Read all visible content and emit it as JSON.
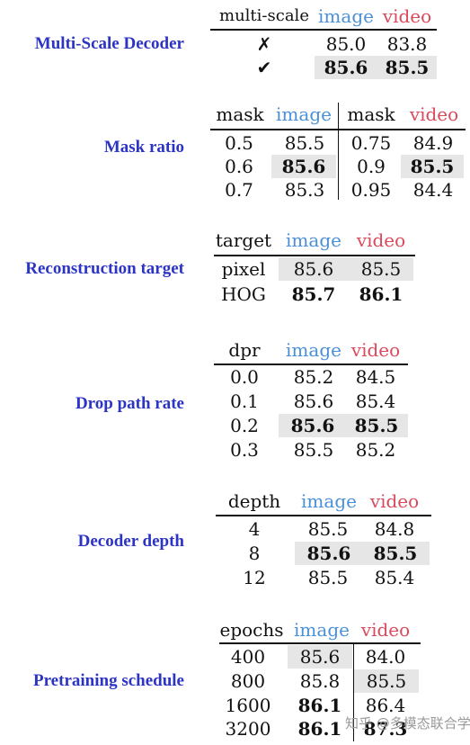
{
  "watermark": "知乎 @多模态联合学习",
  "image_label": "image",
  "video_label": "video",
  "sections": {
    "msd": {
      "label": "Multi-Scale Decoder",
      "header": "multi-scale",
      "rows": [
        {
          "key": "✗",
          "image": "85.0",
          "video": "83.8"
        },
        {
          "key": "✔",
          "image": "85.6",
          "video": "85.5"
        }
      ]
    },
    "mask": {
      "label": "Mask ratio",
      "header": "mask",
      "image_rows": [
        {
          "key": "0.5",
          "image": "85.5"
        },
        {
          "key": "0.6",
          "image": "85.6"
        },
        {
          "key": "0.7",
          "image": "85.3"
        }
      ],
      "video_rows": [
        {
          "key": "0.75",
          "video": "84.9"
        },
        {
          "key": "0.9",
          "video": "85.5"
        },
        {
          "key": "0.95",
          "video": "84.4"
        }
      ]
    },
    "target": {
      "label": "Reconstruction target",
      "header": "target",
      "rows": [
        {
          "key": "pixel",
          "image": "85.6",
          "video": "85.5"
        },
        {
          "key": "HOG",
          "image": "85.7",
          "video": "86.1"
        }
      ]
    },
    "dpr": {
      "label": "Drop path rate",
      "header": "dpr",
      "rows": [
        {
          "key": "0.0",
          "image": "85.2",
          "video": "84.5"
        },
        {
          "key": "0.1",
          "image": "85.6",
          "video": "85.4"
        },
        {
          "key": "0.2",
          "image": "85.6",
          "video": "85.5"
        },
        {
          "key": "0.3",
          "image": "85.5",
          "video": "85.2"
        }
      ]
    },
    "depth": {
      "label": "Decoder depth",
      "header": "depth",
      "rows": [
        {
          "key": "4",
          "image": "85.5",
          "video": "84.8"
        },
        {
          "key": "8",
          "image": "85.6",
          "video": "85.5"
        },
        {
          "key": "12",
          "image": "85.5",
          "video": "85.4"
        }
      ]
    },
    "epochs": {
      "label": "Pretraining schedule",
      "header": "epochs",
      "rows": [
        {
          "key": "400",
          "image": "85.6",
          "video": "84.0"
        },
        {
          "key": "800",
          "image": "85.8",
          "video": "85.5"
        },
        {
          "key": "1600",
          "image": "86.1",
          "video": "86.4"
        },
        {
          "key": "3200",
          "image": "86.1",
          "video": "87.3"
        }
      ]
    }
  }
}
